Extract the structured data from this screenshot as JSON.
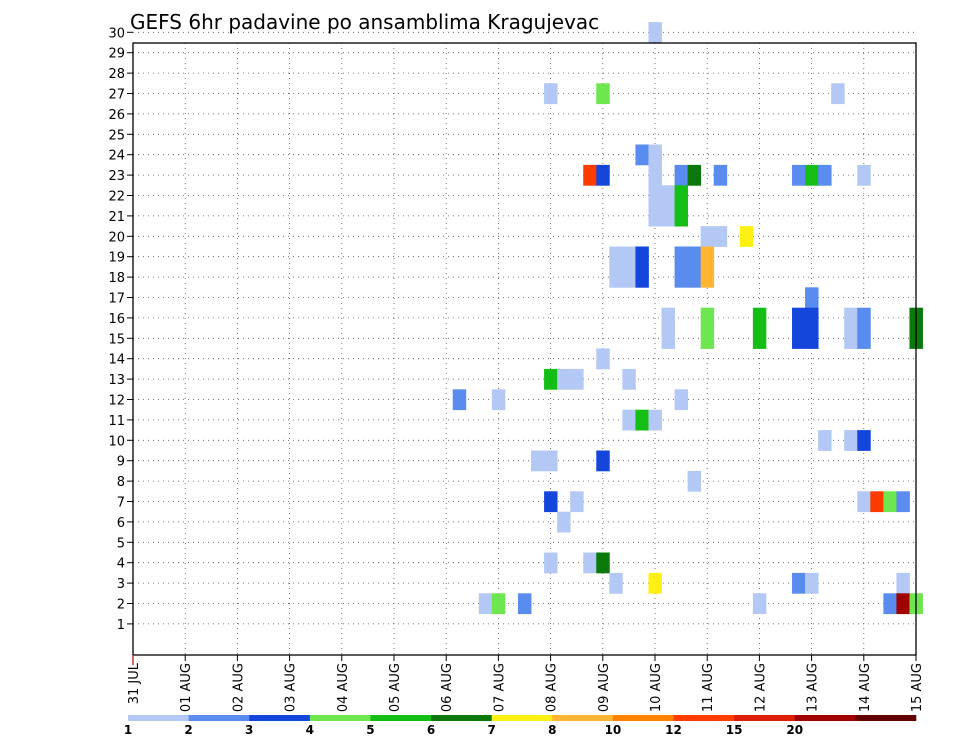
{
  "chart_data": {
    "type": "heatmap",
    "title": "GEFS 6hr padavine po ansamblima Kragujevac",
    "xlabel": "",
    "ylabel": "",
    "x_tick_labels": [
      "31 JUL",
      "01 AUG",
      "02 AUG",
      "03 AUG",
      "04 AUG",
      "05 AUG",
      "06 AUG",
      "07 AUG",
      "08 AUG",
      "09 AUG",
      "10 AUG",
      "11 AUG",
      "12 AUG",
      "13 AUG",
      "14 AUG",
      "15 AUG"
    ],
    "x_unit": "6-hour step from 31 JUL 00Z",
    "y_tick_labels": [
      "1",
      "2",
      "3",
      "4",
      "5",
      "6",
      "7",
      "8",
      "9",
      "10",
      "11",
      "12",
      "13",
      "14",
      "15",
      "16",
      "17",
      "18",
      "19",
      "20",
      "21",
      "22",
      "23",
      "24",
      "25",
      "26",
      "27",
      "28",
      "29",
      "30"
    ],
    "ylim": [
      1,
      30
    ],
    "grid": true,
    "legend": {
      "placement": "bottom",
      "bins": [
        {
          "color": "#b4c8f5",
          "label": "1"
        },
        {
          "color": "#5a8cf0",
          "label": "2"
        },
        {
          "color": "#1446dc",
          "label": "3"
        },
        {
          "color": "#6ee650",
          "label": "4"
        },
        {
          "color": "#14be14",
          "label": "5"
        },
        {
          "color": "#0a780a",
          "label": "6"
        },
        {
          "color": "#fff014",
          "label": "7"
        },
        {
          "color": "#ffb432",
          "label": "8"
        },
        {
          "color": "#ff8200",
          "label": "10"
        },
        {
          "color": "#ff3c00",
          "label": "12"
        },
        {
          "color": "#dc1e00",
          "label": "15"
        },
        {
          "color": "#a00000",
          "label": "20"
        },
        {
          "color": "#640000",
          "label": ""
        }
      ]
    },
    "cells": [
      {
        "member": 30,
        "x": 40,
        "v": 1
      },
      {
        "member": 27,
        "x": 32,
        "v": 1
      },
      {
        "member": 27,
        "x": 36,
        "v": 4
      },
      {
        "member": 27,
        "x": 54,
        "v": 1
      },
      {
        "member": 24,
        "x": 39,
        "v": 2
      },
      {
        "member": 24,
        "x": 40,
        "v": 1
      },
      {
        "member": 23,
        "x": 35,
        "v": 12
      },
      {
        "member": 23,
        "x": 36,
        "v": 3
      },
      {
        "member": 23,
        "x": 40,
        "v": 1
      },
      {
        "member": 23,
        "x": 42,
        "v": 2
      },
      {
        "member": 23,
        "x": 43,
        "v": 6
      },
      {
        "member": 23,
        "x": 45,
        "v": 2
      },
      {
        "member": 23,
        "x": 51,
        "v": 2
      },
      {
        "member": 23,
        "x": 52,
        "v": 5
      },
      {
        "member": 23,
        "x": 53,
        "v": 2
      },
      {
        "member": 23,
        "x": 56,
        "v": 1
      },
      {
        "member": 22,
        "x": 40,
        "v": 1
      },
      {
        "member": 22,
        "x": 41,
        "v": 1
      },
      {
        "member": 22,
        "x": 42,
        "v": 5
      },
      {
        "member": 21,
        "x": 40,
        "v": 1
      },
      {
        "member": 21,
        "x": 41,
        "v": 1
      },
      {
        "member": 21,
        "x": 42,
        "v": 5
      },
      {
        "member": 20,
        "x": 44,
        "v": 1
      },
      {
        "member": 20,
        "x": 45,
        "v": 1
      },
      {
        "member": 20,
        "x": 47,
        "v": 7
      },
      {
        "member": 19,
        "x": 37,
        "v": 1
      },
      {
        "member": 19,
        "x": 38,
        "v": 1
      },
      {
        "member": 19,
        "x": 39,
        "v": 3
      },
      {
        "member": 19,
        "x": 42,
        "v": 2
      },
      {
        "member": 19,
        "x": 43,
        "v": 2
      },
      {
        "member": 19,
        "x": 44,
        "v": 8
      },
      {
        "member": 18,
        "x": 37,
        "v": 1
      },
      {
        "member": 18,
        "x": 38,
        "v": 1
      },
      {
        "member": 18,
        "x": 39,
        "v": 3
      },
      {
        "member": 18,
        "x": 42,
        "v": 2
      },
      {
        "member": 18,
        "x": 43,
        "v": 2
      },
      {
        "member": 18,
        "x": 44,
        "v": 8
      },
      {
        "member": 17,
        "x": 52,
        "v": 2
      },
      {
        "member": 16,
        "x": 41,
        "v": 1
      },
      {
        "member": 16,
        "x": 44,
        "v": 4
      },
      {
        "member": 16,
        "x": 48,
        "v": 5
      },
      {
        "member": 16,
        "x": 51,
        "v": 3
      },
      {
        "member": 16,
        "x": 52,
        "v": 3
      },
      {
        "member": 16,
        "x": 55,
        "v": 1
      },
      {
        "member": 16,
        "x": 56,
        "v": 2
      },
      {
        "member": 16,
        "x": 60,
        "v": 6
      },
      {
        "member": 15,
        "x": 41,
        "v": 1
      },
      {
        "member": 15,
        "x": 44,
        "v": 4
      },
      {
        "member": 15,
        "x": 48,
        "v": 5
      },
      {
        "member": 15,
        "x": 51,
        "v": 3
      },
      {
        "member": 15,
        "x": 52,
        "v": 3
      },
      {
        "member": 15,
        "x": 55,
        "v": 1
      },
      {
        "member": 15,
        "x": 56,
        "v": 2
      },
      {
        "member": 15,
        "x": 60,
        "v": 6
      },
      {
        "member": 14,
        "x": 36,
        "v": 1
      },
      {
        "member": 13,
        "x": 32,
        "v": 5
      },
      {
        "member": 13,
        "x": 33,
        "v": 1
      },
      {
        "member": 13,
        "x": 34,
        "v": 1
      },
      {
        "member": 13,
        "x": 38,
        "v": 1
      },
      {
        "member": 12,
        "x": 25,
        "v": 2
      },
      {
        "member": 12,
        "x": 28,
        "v": 1
      },
      {
        "member": 12,
        "x": 42,
        "v": 1
      },
      {
        "member": 11,
        "x": 38,
        "v": 1
      },
      {
        "member": 11,
        "x": 39,
        "v": 5
      },
      {
        "member": 11,
        "x": 40,
        "v": 1
      },
      {
        "member": 10,
        "x": 53,
        "v": 1
      },
      {
        "member": 10,
        "x": 55,
        "v": 1
      },
      {
        "member": 10,
        "x": 56,
        "v": 3
      },
      {
        "member": 9,
        "x": 31,
        "v": 1
      },
      {
        "member": 9,
        "x": 32,
        "v": 1
      },
      {
        "member": 9,
        "x": 36,
        "v": 3
      },
      {
        "member": 8,
        "x": 43,
        "v": 1
      },
      {
        "member": 7,
        "x": 32,
        "v": 3
      },
      {
        "member": 7,
        "x": 34,
        "v": 1
      },
      {
        "member": 7,
        "x": 56,
        "v": 1
      },
      {
        "member": 7,
        "x": 57,
        "v": 12
      },
      {
        "member": 7,
        "x": 58,
        "v": 4
      },
      {
        "member": 7,
        "x": 59,
        "v": 2
      },
      {
        "member": 6,
        "x": 33,
        "v": 1
      },
      {
        "member": 4,
        "x": 32,
        "v": 1
      },
      {
        "member": 4,
        "x": 35,
        "v": 1
      },
      {
        "member": 4,
        "x": 36,
        "v": 6
      },
      {
        "member": 3,
        "x": 37,
        "v": 1
      },
      {
        "member": 3,
        "x": 40,
        "v": 7
      },
      {
        "member": 3,
        "x": 51,
        "v": 2
      },
      {
        "member": 3,
        "x": 52,
        "v": 1
      },
      {
        "member": 3,
        "x": 59,
        "v": 1
      },
      {
        "member": 2,
        "x": 27,
        "v": 1
      },
      {
        "member": 2,
        "x": 28,
        "v": 4
      },
      {
        "member": 2,
        "x": 30,
        "v": 2
      },
      {
        "member": 2,
        "x": 48,
        "v": 1
      },
      {
        "member": 2,
        "x": 58,
        "v": 2
      },
      {
        "member": 2,
        "x": 59,
        "v": 20
      },
      {
        "member": 2,
        "x": 60,
        "v": 4
      }
    ]
  }
}
